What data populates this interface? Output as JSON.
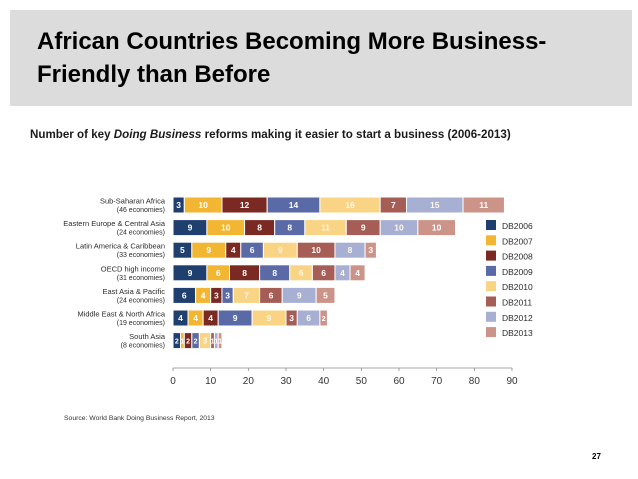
{
  "slide": {
    "title": "African Countries Becoming More Business-Friendly than Before",
    "subtitle_prefix": "Number of key ",
    "subtitle_emphasis": "Doing Business",
    "subtitle_suffix": " reforms making it easier to start a business (2006-2013)",
    "source": "Source: World Bank Doing Business Report, 2013",
    "page_number": "27"
  },
  "colors": {
    "title_band": "#dcdcdc",
    "DB2006": "#1f3f6e",
    "DB2007": "#f2b632",
    "DB2008": "#7a2a22",
    "DB2009": "#5a6aa6",
    "DB2010": "#f8d484",
    "DB2011": "#a55d55",
    "DB2012": "#a7b0d3",
    "DB2013": "#cc9489"
  },
  "chart_data": {
    "type": "bar",
    "orientation": "horizontal",
    "stacked": true,
    "title": "",
    "xlabel": "",
    "ylabel": "",
    "xlim": [
      0,
      90
    ],
    "x_ticks": [
      "0",
      "10",
      "20",
      "30",
      "40",
      "50",
      "60",
      "70",
      "80",
      "90"
    ],
    "categories": [
      {
        "name": "Sub-Saharan Africa",
        "note": "(46 economies)"
      },
      {
        "name": "Eastern Europe & Central Asia",
        "note": "(24 economies)"
      },
      {
        "name": "Latin America & Caribbean",
        "note": "(33 economies)"
      },
      {
        "name": "OECD high income",
        "note": "(31 economies)"
      },
      {
        "name": "East Asia & Pacific",
        "note": "(24 economies)"
      },
      {
        "name": "Middle East & North Africa",
        "note": "(19 economies)"
      },
      {
        "name": "South Asia",
        "note": "(8 economies)"
      }
    ],
    "series": [
      {
        "name": "DB2006",
        "values": [
          3,
          9,
          5,
          9,
          6,
          4,
          2
        ]
      },
      {
        "name": "DB2007",
        "values": [
          10,
          10,
          9,
          6,
          4,
          4,
          1
        ]
      },
      {
        "name": "DB2008",
        "values": [
          12,
          8,
          4,
          8,
          3,
          4,
          2
        ]
      },
      {
        "name": "DB2009",
        "values": [
          14,
          8,
          6,
          8,
          3,
          9,
          2
        ]
      },
      {
        "name": "DB2010",
        "values": [
          16,
          11,
          9,
          6,
          7,
          9,
          3
        ]
      },
      {
        "name": "DB2011",
        "values": [
          7,
          9,
          10,
          6,
          6,
          3,
          1
        ]
      },
      {
        "name": "DB2012",
        "values": [
          15,
          10,
          8,
          4,
          9,
          6,
          1
        ]
      },
      {
        "name": "DB2013",
        "values": [
          11,
          10,
          3,
          4,
          5,
          2,
          1
        ]
      }
    ],
    "legend": [
      "DB2006",
      "DB2007",
      "DB2008",
      "DB2009",
      "DB2010",
      "DB2011",
      "DB2012",
      "DB2013"
    ],
    "legend_position": "right"
  }
}
